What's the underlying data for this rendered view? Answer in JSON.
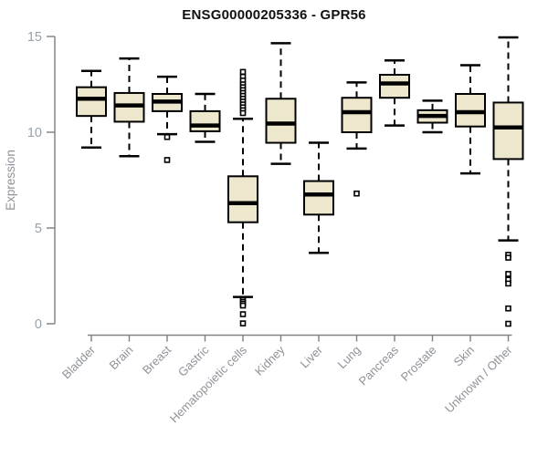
{
  "page": {
    "background": "#ffffff"
  },
  "chart_data": {
    "type": "boxplot",
    "title": "ENSG00000205336 - GPR56",
    "ylabel": "Expression",
    "xlabel": "",
    "ylim": [
      0,
      15
    ],
    "yticks": [
      0,
      5,
      10,
      15
    ],
    "grid": false,
    "legend": "none",
    "box_fill": "#EDE8CD",
    "box_stroke": "#000000",
    "axis_color": "#858585",
    "ytick_label_color": "#98a1aa",
    "xtick_label_color": "#8e9299",
    "categories": [
      "Bladder",
      "Brain",
      "Breast",
      "Gastric",
      "Hematopoietic cells",
      "Kidney",
      "Liver",
      "Lung",
      "Pancreas",
      "Prostate",
      "Skin",
      "Unknown / Other"
    ],
    "series": [
      {
        "category": "Bladder",
        "low": 9.2,
        "q1": 10.85,
        "median": 11.75,
        "q3": 12.35,
        "high": 13.2,
        "outliers": []
      },
      {
        "category": "Brain",
        "low": 8.75,
        "q1": 10.55,
        "median": 11.4,
        "q3": 12.05,
        "high": 13.85,
        "outliers": []
      },
      {
        "category": "Breast",
        "low": 9.9,
        "q1": 11.1,
        "median": 11.6,
        "q3": 12.0,
        "high": 12.9,
        "outliers": [
          9.75,
          8.55
        ]
      },
      {
        "category": "Gastric",
        "low": 9.5,
        "q1": 10.05,
        "median": 10.35,
        "q3": 11.1,
        "high": 12.0,
        "outliers": []
      },
      {
        "category": "Hematopoietic cells",
        "low": 1.4,
        "q1": 5.3,
        "median": 6.3,
        "q3": 7.7,
        "high": 10.7,
        "outliers": [
          13.15,
          12.9,
          12.7,
          12.5,
          12.35,
          12.2,
          12.05,
          11.9,
          11.75,
          11.6,
          11.45,
          11.3,
          11.15,
          11.0,
          1.25,
          1.15,
          1.05,
          0.95,
          0.5,
          0.02
        ]
      },
      {
        "category": "Kidney",
        "low": 8.35,
        "q1": 9.45,
        "median": 10.45,
        "q3": 11.75,
        "high": 14.65,
        "outliers": []
      },
      {
        "category": "Liver",
        "low": 3.7,
        "q1": 5.7,
        "median": 6.75,
        "q3": 7.45,
        "high": 9.45,
        "outliers": []
      },
      {
        "category": "Lung",
        "low": 9.15,
        "q1": 10.0,
        "median": 11.05,
        "q3": 11.8,
        "high": 12.6,
        "outliers": [
          6.8
        ]
      },
      {
        "category": "Pancreas",
        "low": 10.35,
        "q1": 11.8,
        "median": 12.55,
        "q3": 13.0,
        "high": 13.75,
        "outliers": []
      },
      {
        "category": "Prostate",
        "low": 10.0,
        "q1": 10.5,
        "median": 10.85,
        "q3": 11.15,
        "high": 11.65,
        "outliers": []
      },
      {
        "category": "Skin",
        "low": 7.85,
        "q1": 10.3,
        "median": 11.05,
        "q3": 12.0,
        "high": 13.5,
        "outliers": []
      },
      {
        "category": "Unknown / Other",
        "low": 4.35,
        "q1": 8.6,
        "median": 10.25,
        "q3": 11.55,
        "high": 14.95,
        "outliers": [
          3.6,
          3.45,
          2.6,
          2.3,
          2.1,
          0.8,
          0.0
        ]
      }
    ]
  }
}
